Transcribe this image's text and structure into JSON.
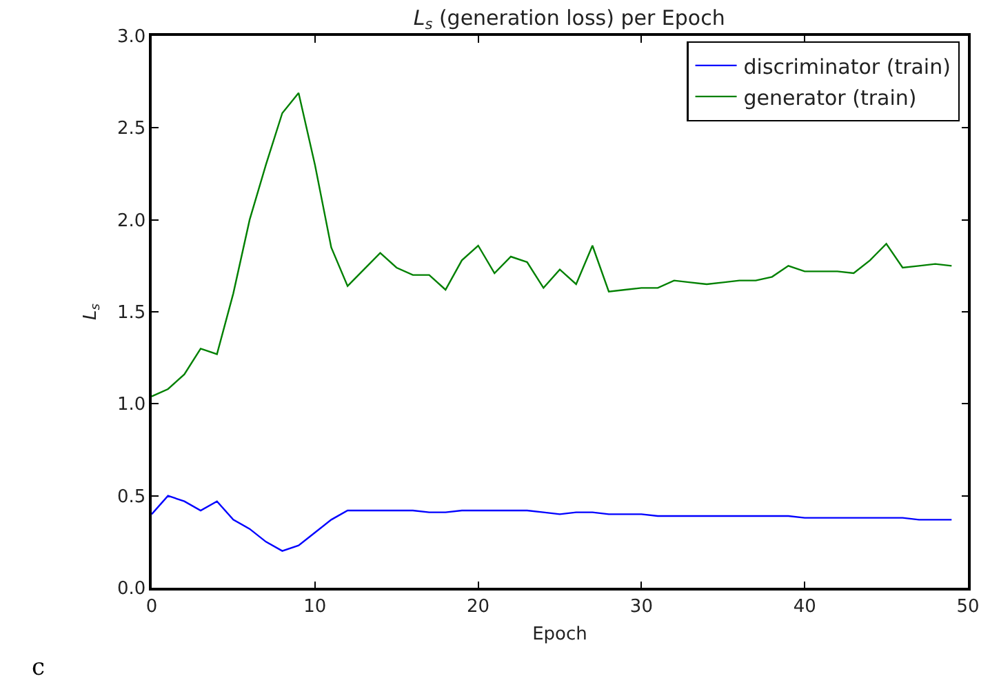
{
  "chart_data": {
    "type": "line",
    "title": "L$_{s}$ (generation loss) per Epoch",
    "xlabel": "Epoch",
    "ylabel": "L$_{s}$",
    "x": [
      0,
      1,
      2,
      3,
      4,
      5,
      6,
      7,
      8,
      9,
      10,
      11,
      12,
      13,
      14,
      15,
      16,
      17,
      18,
      19,
      20,
      21,
      22,
      23,
      24,
      25,
      26,
      27,
      28,
      29,
      30,
      31,
      32,
      33,
      34,
      35,
      36,
      37,
      38,
      39,
      40,
      41,
      42,
      43,
      44,
      45,
      46,
      47,
      48,
      49
    ],
    "series": [
      {
        "name": "discriminator (train)",
        "color": "#0000ff",
        "values": [
          0.4,
          0.5,
          0.47,
          0.42,
          0.47,
          0.37,
          0.32,
          0.25,
          0.2,
          0.23,
          0.3,
          0.37,
          0.42,
          0.42,
          0.42,
          0.42,
          0.42,
          0.41,
          0.41,
          0.42,
          0.42,
          0.42,
          0.42,
          0.42,
          0.41,
          0.4,
          0.41,
          0.41,
          0.4,
          0.4,
          0.4,
          0.39,
          0.39,
          0.39,
          0.39,
          0.39,
          0.39,
          0.39,
          0.39,
          0.39,
          0.38,
          0.38,
          0.38,
          0.38,
          0.38,
          0.38,
          0.38,
          0.37,
          0.37,
          0.37
        ]
      },
      {
        "name": "generator (train)",
        "color": "#008000",
        "values": [
          1.04,
          1.08,
          1.16,
          1.3,
          1.27,
          1.6,
          2.0,
          2.3,
          2.58,
          2.69,
          2.3,
          1.85,
          1.64,
          1.73,
          1.82,
          1.74,
          1.7,
          1.7,
          1.62,
          1.78,
          1.86,
          1.71,
          1.8,
          1.77,
          1.63,
          1.73,
          1.65,
          1.86,
          1.61,
          1.62,
          1.63,
          1.63,
          1.67,
          1.66,
          1.65,
          1.66,
          1.67,
          1.67,
          1.69,
          1.75,
          1.72,
          1.72,
          1.72,
          1.71,
          1.78,
          1.87,
          1.74,
          1.75,
          1.76,
          1.75
        ]
      }
    ],
    "xlim": [
      0,
      50
    ],
    "xticks": [
      0,
      10,
      20,
      30,
      40,
      50
    ],
    "ylim": [
      0,
      3
    ],
    "yticks": [
      {
        "value": 0,
        "label": "0.0"
      },
      {
        "value": 0.5,
        "label": "0.5"
      },
      {
        "value": 1,
        "label": "1.0"
      },
      {
        "value": 1.5,
        "label": "1.5"
      },
      {
        "value": 2,
        "label": "2.0"
      },
      {
        "value": 2.5,
        "label": "2.5"
      },
      {
        "value": 3,
        "label": "3.0"
      }
    ],
    "legend": "top right",
    "marker": "none",
    "line_style": "solid",
    "annotations": [
      "c"
    ]
  }
}
